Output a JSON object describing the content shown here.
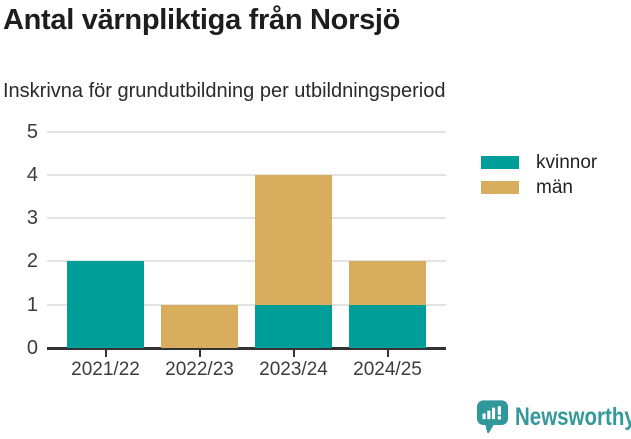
{
  "title": "Antal värnpliktiga från Norsjö",
  "subtitle": "Inskrivna för grundutbildning per utbildningsperiod",
  "chart_data": {
    "type": "bar",
    "stacked": true,
    "title": "Antal värnpliktiga från Norsjö",
    "subtitle": "Inskrivna för grundutbildning per utbildningsperiod",
    "categories": [
      "2021/22",
      "2022/23",
      "2023/24",
      "2024/25"
    ],
    "series": [
      {
        "name": "kvinnor",
        "color": "#009E98",
        "values": [
          2,
          0,
          1,
          1
        ]
      },
      {
        "name": "män",
        "color": "#D8AE5E",
        "values": [
          0,
          1,
          3,
          1
        ]
      }
    ],
    "xlabel": "",
    "ylabel": "",
    "ylim": [
      0,
      5
    ],
    "yticks": [
      0,
      1,
      2,
      3,
      4,
      5
    ],
    "grid": true,
    "legend_position": "top-right"
  },
  "footer": {
    "brand": "Newsworthy"
  },
  "colors": {
    "kvinnor": "#009E98",
    "man": "#D8AE5E",
    "axis": "#333333",
    "gridline": "#E3E3E3",
    "tick_label": "#3C3C3C",
    "title_text": "#1D1D1D",
    "brand_teal": "#35989A"
  }
}
